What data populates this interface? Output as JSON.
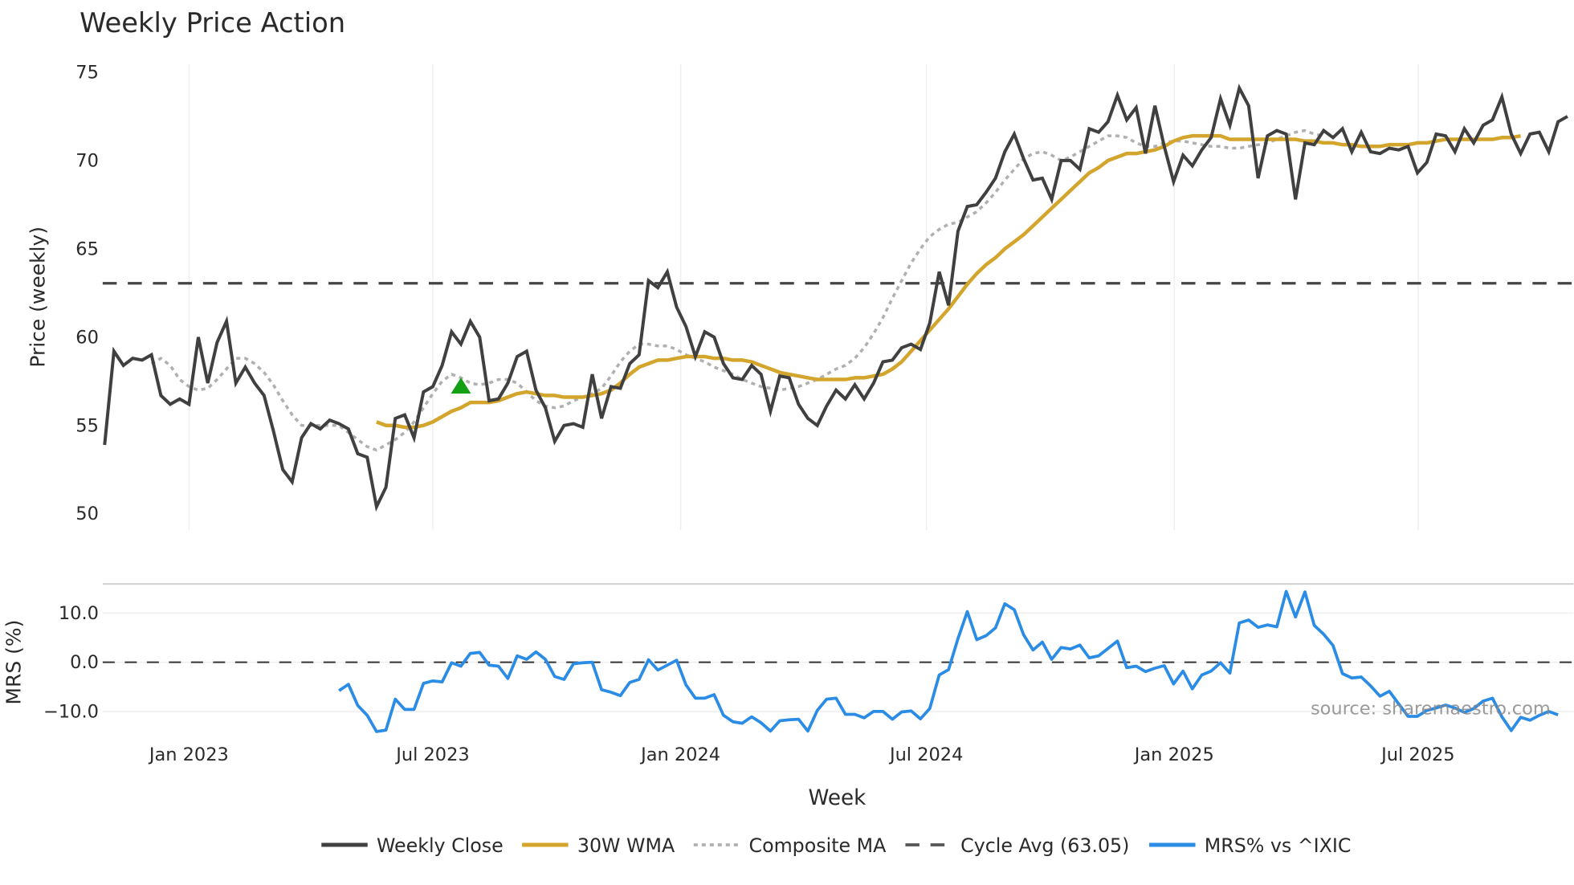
{
  "chart_data": [
    {
      "type": "line",
      "title": "Weekly Price Action",
      "xlabel": "Week",
      "ylabel": "Price (weekly)",
      "ylim": [
        49.2,
        75.5
      ],
      "yticks": [
        50,
        55,
        60,
        65,
        70,
        75
      ],
      "xticks": [
        "Jan 2023",
        "Jul 2023",
        "Jan 2024",
        "Jul 2024",
        "Jan 2025",
        "Jul 2025"
      ],
      "x_start_week_offset": -9,
      "grid": true,
      "series": [
        {
          "name": "Weekly Close",
          "color": "#404040",
          "style": "solid",
          "start_week": -9,
          "values": [
            53.9,
            59.2,
            58.4,
            58.8,
            58.7,
            59.0,
            56.7,
            56.2,
            56.5,
            56.2,
            60.0,
            57.4,
            59.7,
            60.9,
            57.4,
            58.3,
            57.4,
            56.7,
            54.7,
            52.5,
            51.8,
            54.3,
            55.1,
            54.8,
            55.3,
            55.1,
            54.8,
            53.4,
            53.2,
            50.4,
            51.5,
            55.4,
            55.6,
            54.3,
            56.9,
            57.2,
            58.4,
            60.3,
            59.6,
            60.9,
            60.0,
            56.4,
            56.5,
            57.4,
            58.9,
            59.2,
            57.0,
            56.0,
            54.1,
            55.0,
            55.1,
            54.9,
            57.9,
            55.4,
            57.2,
            57.1,
            58.5,
            59.0,
            63.2,
            62.8,
            63.7,
            61.7,
            60.6,
            58.9,
            60.3,
            60.0,
            58.5,
            57.7,
            57.6,
            58.4,
            57.9,
            55.8,
            57.8,
            57.7,
            56.2,
            55.4,
            55.0,
            56.1,
            57.0,
            56.5,
            57.3,
            56.5,
            57.4,
            58.6,
            58.7,
            59.4,
            59.6,
            59.3,
            60.8,
            63.7,
            61.8,
            66.0,
            67.4,
            67.5,
            68.2,
            69.0,
            70.5,
            71.5,
            70.1,
            68.9,
            69.0,
            67.8,
            70.0,
            70.0,
            69.5,
            71.8,
            71.6,
            72.2,
            73.7,
            72.3,
            73.0,
            70.4,
            73.1,
            70.8,
            68.8,
            70.3,
            69.7,
            70.6,
            71.3,
            73.5,
            72.0,
            74.1,
            73.1,
            69.0,
            71.4,
            71.7,
            71.5,
            67.8,
            71.0,
            70.9,
            71.7,
            71.3,
            71.8,
            70.5,
            71.6,
            70.5,
            70.4,
            70.7,
            70.6,
            70.8,
            69.3,
            69.9,
            71.5,
            71.4,
            70.5,
            71.8,
            71.0,
            72.0,
            72.3,
            73.6,
            71.5,
            70.4,
            71.5,
            71.6,
            70.5,
            72.2,
            72.5
          ]
        },
        {
          "name": "30W WMA",
          "color": "#d4a52c",
          "style": "solid",
          "start_week": 20,
          "values": [
            55.2,
            55.0,
            55.0,
            54.9,
            54.9,
            55.0,
            55.2,
            55.5,
            55.8,
            56.0,
            56.3,
            56.3,
            56.3,
            56.4,
            56.6,
            56.8,
            56.9,
            56.8,
            56.7,
            56.7,
            56.6,
            56.6,
            56.6,
            56.7,
            56.8,
            57.0,
            57.4,
            57.9,
            58.3,
            58.5,
            58.7,
            58.7,
            58.8,
            58.9,
            58.9,
            58.9,
            58.8,
            58.8,
            58.7,
            58.7,
            58.6,
            58.4,
            58.2,
            58.0,
            57.9,
            57.8,
            57.7,
            57.6,
            57.6,
            57.6,
            57.6,
            57.7,
            57.7,
            57.8,
            57.9,
            58.2,
            58.6,
            59.2,
            59.8,
            60.4,
            61.0,
            61.6,
            62.3,
            63.0,
            63.6,
            64.1,
            64.5,
            65.0,
            65.4,
            65.8,
            66.3,
            66.8,
            67.3,
            67.8,
            68.3,
            68.8,
            69.3,
            69.6,
            70.0,
            70.2,
            70.4,
            70.4,
            70.5,
            70.6,
            70.8,
            71.1,
            71.3,
            71.4,
            71.4,
            71.4,
            71.4,
            71.2,
            71.2,
            71.2,
            71.2,
            71.2,
            71.2,
            71.2,
            71.2,
            71.1,
            71.1,
            71.0,
            71.0,
            70.9,
            70.9,
            70.8,
            70.8,
            70.8,
            70.9,
            70.9,
            70.9,
            71.0,
            71.0,
            71.1,
            71.2,
            71.2,
            71.2,
            71.2,
            71.2,
            71.2,
            71.3,
            71.3,
            71.4
          ]
        },
        {
          "name": "Composite MA",
          "color": "#b0b0b0",
          "style": "dotted",
          "start_week": -4,
          "values": [
            58.5,
            58.8,
            58.4,
            57.6,
            57.2,
            57.0,
            57.1,
            57.6,
            58.2,
            58.8,
            58.8,
            58.5,
            58.0,
            57.3,
            56.4,
            55.6,
            55.0,
            55.0,
            55.0,
            55.0,
            55.0,
            54.6,
            54.2,
            53.8,
            53.6,
            53.9,
            54.2,
            54.6,
            55.2,
            56.0,
            56.8,
            57.5,
            57.9,
            57.7,
            57.4,
            57.3,
            57.4,
            57.6,
            57.6,
            57.4,
            56.9,
            56.4,
            56.1,
            56.0,
            56.1,
            56.4,
            56.6,
            56.8,
            57.1,
            57.8,
            58.6,
            59.2,
            59.6,
            59.6,
            59.5,
            59.5,
            59.3,
            59.0,
            58.8,
            58.6,
            58.3,
            58.1,
            57.9,
            57.6,
            57.4,
            57.2,
            57.1,
            57.0,
            57.1,
            57.2,
            57.4,
            57.6,
            57.9,
            58.2,
            58.4,
            58.8,
            59.4,
            60.2,
            61.1,
            62.2,
            63.2,
            64.2,
            65.0,
            65.7,
            66.1,
            66.4,
            66.5,
            66.8,
            67.1,
            67.6,
            68.2,
            68.9,
            69.5,
            70.1,
            70.4,
            70.5,
            70.3,
            70.0,
            70.2,
            70.5,
            70.8,
            71.1,
            71.4,
            71.4,
            71.3,
            71.0,
            70.8,
            70.8,
            71.0,
            71.1,
            71.1,
            71.0,
            70.9,
            70.8,
            70.8,
            70.7,
            70.7,
            70.8,
            70.9,
            71.0,
            71.2,
            71.4,
            71.6,
            71.7,
            71.5,
            71.4
          ]
        },
        {
          "name": "Cycle Avg (63.05)",
          "color": "#444444",
          "style": "dashed",
          "value": 63.05
        }
      ],
      "annotations": [
        {
          "type": "marker",
          "shape": "triangle-up",
          "color": "#14a014",
          "week": 29,
          "value": 57.2
        }
      ]
    },
    {
      "type": "line",
      "title": "",
      "xlabel": "Week",
      "ylabel": "MRS (%)",
      "ylim": [
        -15.5,
        16
      ],
      "yticks": [
        10.0,
        0.0,
        -10.0
      ],
      "yticklabels": [
        "10.0",
        "0.0",
        "−10.0"
      ],
      "series": [
        {
          "name": "MRS% vs ^IXIC",
          "color": "#2b8ce6",
          "style": "solid",
          "start_week": 16,
          "values": [
            -5.8,
            -4.5,
            -8.8,
            -10.8,
            -14.1,
            -13.8,
            -7.5,
            -9.6,
            -9.6,
            -4.3,
            -3.8,
            -4.0,
            -0.1,
            -0.8,
            1.8,
            2.0,
            -0.6,
            -0.8,
            -3.3,
            1.3,
            0.6,
            2.1,
            0.6,
            -2.9,
            -3.5,
            -0.3,
            -0.1,
            0.0,
            -5.6,
            -6.1,
            -6.8,
            -4.1,
            -3.5,
            0.5,
            -1.6,
            -0.6,
            0.4,
            -4.6,
            -7.3,
            -7.3,
            -6.6,
            -10.8,
            -12.1,
            -12.4,
            -11.1,
            -12.3,
            -14.0,
            -11.9,
            -11.7,
            -11.6,
            -14.0,
            -9.8,
            -7.5,
            -7.3,
            -10.6,
            -10.6,
            -11.3,
            -10.0,
            -10.0,
            -11.6,
            -10.1,
            -9.9,
            -11.5,
            -9.4,
            -2.6,
            -1.5,
            4.8,
            10.3,
            4.6,
            5.4,
            7.0,
            11.9,
            10.7,
            5.6,
            2.5,
            4.1,
            0.6,
            3.0,
            2.7,
            3.5,
            0.9,
            1.3,
            2.8,
            4.3,
            -1.1,
            -0.8,
            -1.9,
            -1.2,
            -0.7,
            -4.4,
            -1.8,
            -5.4,
            -2.6,
            -1.8,
            -0.1,
            -2.2,
            8.0,
            8.6,
            7.1,
            7.6,
            7.2,
            14.4,
            9.2,
            14.3,
            7.5,
            5.7,
            3.4,
            -2.3,
            -3.2,
            -3.0,
            -4.8,
            -6.9,
            -5.9,
            -8.5,
            -11.0,
            -11.0,
            -9.8,
            -9.3,
            -8.7,
            -9.3,
            -10.2,
            -9.4,
            -7.9,
            -7.3,
            -11.1,
            -13.9,
            -11.2,
            -11.8,
            -10.8,
            -10.0,
            -10.7
          ]
        },
        {
          "name": "zero-line",
          "color": "#333333",
          "style": "dashed",
          "value": 0
        }
      ]
    }
  ],
  "header": {
    "title": "Weekly Price Action"
  },
  "price_panel": {
    "ylabel": "Price (weekly)",
    "ticks": [
      "75",
      "70",
      "65",
      "60",
      "55",
      "50"
    ]
  },
  "mrs_panel": {
    "ylabel": "MRS (%)",
    "ticks": [
      "10.0",
      "0.0",
      "−10.0"
    ],
    "source": "source: sharemaestro.com"
  },
  "xaxis": {
    "label": "Week",
    "ticks": [
      "Jan 2023",
      "Jul 2023",
      "Jan 2024",
      "Jul 2024",
      "Jan 2025",
      "Jul 2025"
    ]
  },
  "legend": {
    "items": [
      {
        "label": "Weekly Close",
        "color": "#404040",
        "style": "solid"
      },
      {
        "label": "30W WMA",
        "color": "#d4a52c",
        "style": "solid"
      },
      {
        "label": "Composite MA",
        "color": "#b0b0b0",
        "style": "dotted"
      },
      {
        "label": "Cycle Avg (63.05)",
        "color": "#444444",
        "style": "dashed"
      },
      {
        "label": "MRS% vs ^IXIC",
        "color": "#2b8ce6",
        "style": "solid"
      }
    ]
  }
}
